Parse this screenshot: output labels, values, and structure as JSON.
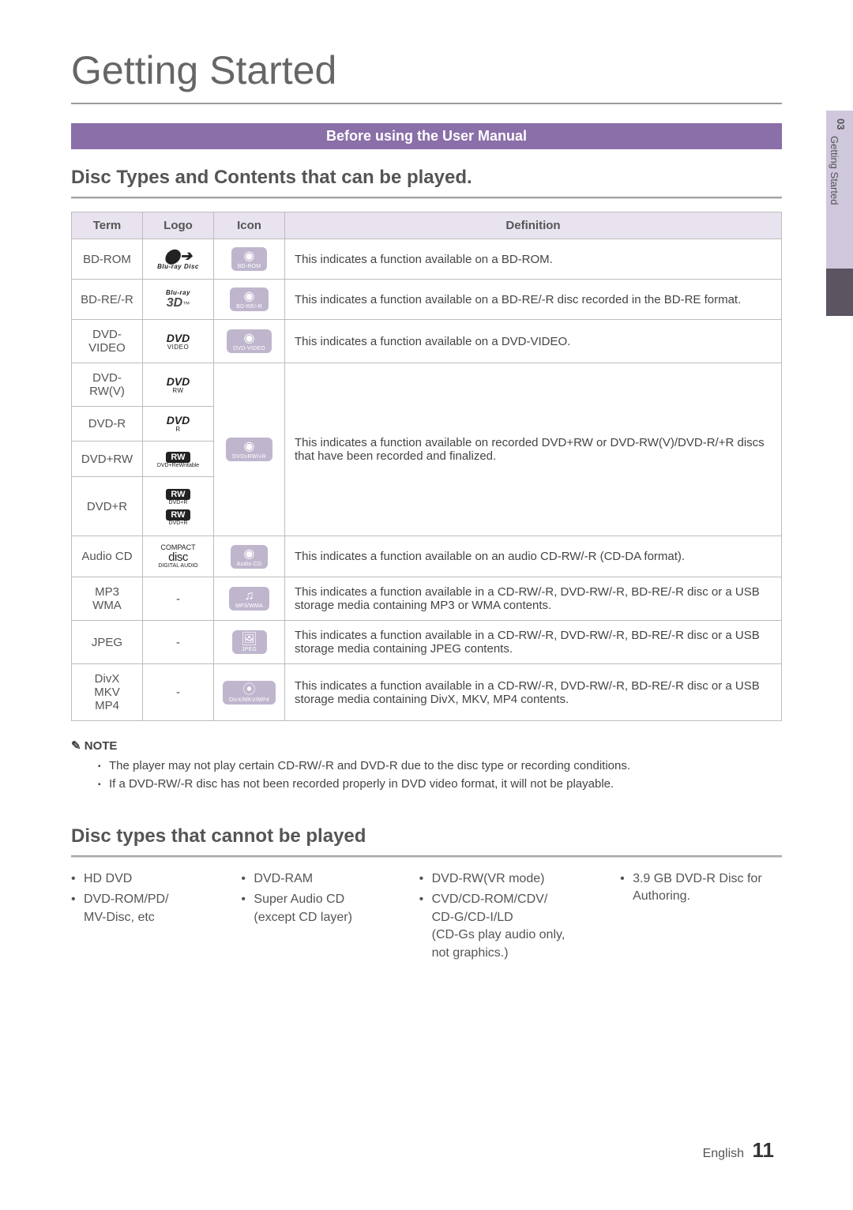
{
  "page": {
    "title": "Getting Started",
    "banner": "Before using the User Manual",
    "section1_title": "Disc Types and Contents that can be played.",
    "section2_title": "Disc types that cannot be played",
    "sidebar": {
      "chapter_num": "03",
      "chapter_name": "Getting Started"
    },
    "footer": {
      "lang": "English",
      "page_num": "11"
    }
  },
  "table": {
    "headers": {
      "term": "Term",
      "logo": "Logo",
      "icon": "Icon",
      "def": "Definition"
    },
    "header_bg": "#e8e3ef",
    "border_color": "#bdbdbd",
    "icon_bg": "#bfb6ce",
    "rows": {
      "bdrom": {
        "term": "BD-ROM",
        "icon_cap": "BD-ROM",
        "def": "This indicates a function available on a BD-ROM."
      },
      "bdre": {
        "term": "BD-RE/-R",
        "icon_cap": "BD-RE/-R",
        "def": "This indicates a function available on a BD-RE/-R disc recorded in the BD-RE format."
      },
      "dvdvid": {
        "term": "DVD-VIDEO",
        "icon_cap": "DVD-VIDEO",
        "def": "This indicates a function available on a DVD-VIDEO."
      },
      "dvdrwv": {
        "term": "DVD-RW(V)"
      },
      "dvdr": {
        "term": "DVD-R"
      },
      "dvdprw": {
        "term": "DVD+RW",
        "icon_cap": "DVD±RW/±R"
      },
      "dvdpr": {
        "term": "DVD+R"
      },
      "dvdgroup_def": "This indicates a function available on recorded DVD+RW or DVD-RW(V)/DVD-R/+R discs that have been recorded and finalized.",
      "audiocd": {
        "term": "Audio CD",
        "icon_cap": "Audio CD",
        "def": "This indicates a function available on an audio CD-RW/-R (CD-DA format)."
      },
      "mp3": {
        "term_l1": "MP3",
        "term_l2": "WMA",
        "logo": "-",
        "icon_cap": "MP3/WMA",
        "def": "This indicates a function available in a CD-RW/-R, DVD-RW/-R, BD-RE/-R disc or a USB storage media containing MP3 or WMA contents."
      },
      "jpeg": {
        "term": "JPEG",
        "logo": "-",
        "icon_cap": "JPEG",
        "def": "This indicates a function available in a CD-RW/-R, DVD-RW/-R, BD-RE/-R disc or a USB storage media containing JPEG contents."
      },
      "divx": {
        "term_l1": "DivX",
        "term_l2": "MKV",
        "term_l3": "MP4",
        "logo": "-",
        "icon_cap": "DivX/MKV/MP4",
        "def": "This indicates a function available in a CD-RW/-R, DVD-RW/-R, BD-RE/-R disc or a USB storage media containing DivX, MKV, MP4 contents."
      }
    },
    "logos": {
      "bluray_disc": "Blu-ray Disc",
      "bluray_3d_top": "Blu-ray",
      "bluray_3d": "3D",
      "bluray_3d_tm": "™",
      "dvd": "DVD",
      "dvd_video": "VIDEO",
      "dvd_rw": "RW",
      "dvd_r": "R",
      "rw_badge": "RW",
      "rw_sub1": "DVD+ReWritable",
      "rw_sub2": "DVD+R",
      "rw_sub3": "DVD+R",
      "cd_compact": "COMPACT",
      "cd_disc": "disc",
      "cd_da": "DIGITAL AUDIO"
    }
  },
  "notes": {
    "label": "NOTE",
    "items": [
      "The player may not play certain CD-RW/-R and DVD-R due to the disc type or recording conditions.",
      "If a DVD-RW/-R disc has not been recorded properly in DVD video format, it will not be playable."
    ]
  },
  "unplayable": {
    "col1": [
      "HD DVD",
      "DVD-ROM/PD/\nMV-Disc, etc"
    ],
    "col2": [
      "DVD-RAM",
      "Super Audio CD\n(except CD layer)"
    ],
    "col3": [
      "DVD-RW(VR mode)",
      "CVD/CD-ROM/CDV/\nCD-G/CD-I/LD\n(CD-Gs play audio only,\nnot graphics.)"
    ],
    "col4": [
      "3.9 GB DVD-R Disc for\nAuthoring."
    ]
  }
}
